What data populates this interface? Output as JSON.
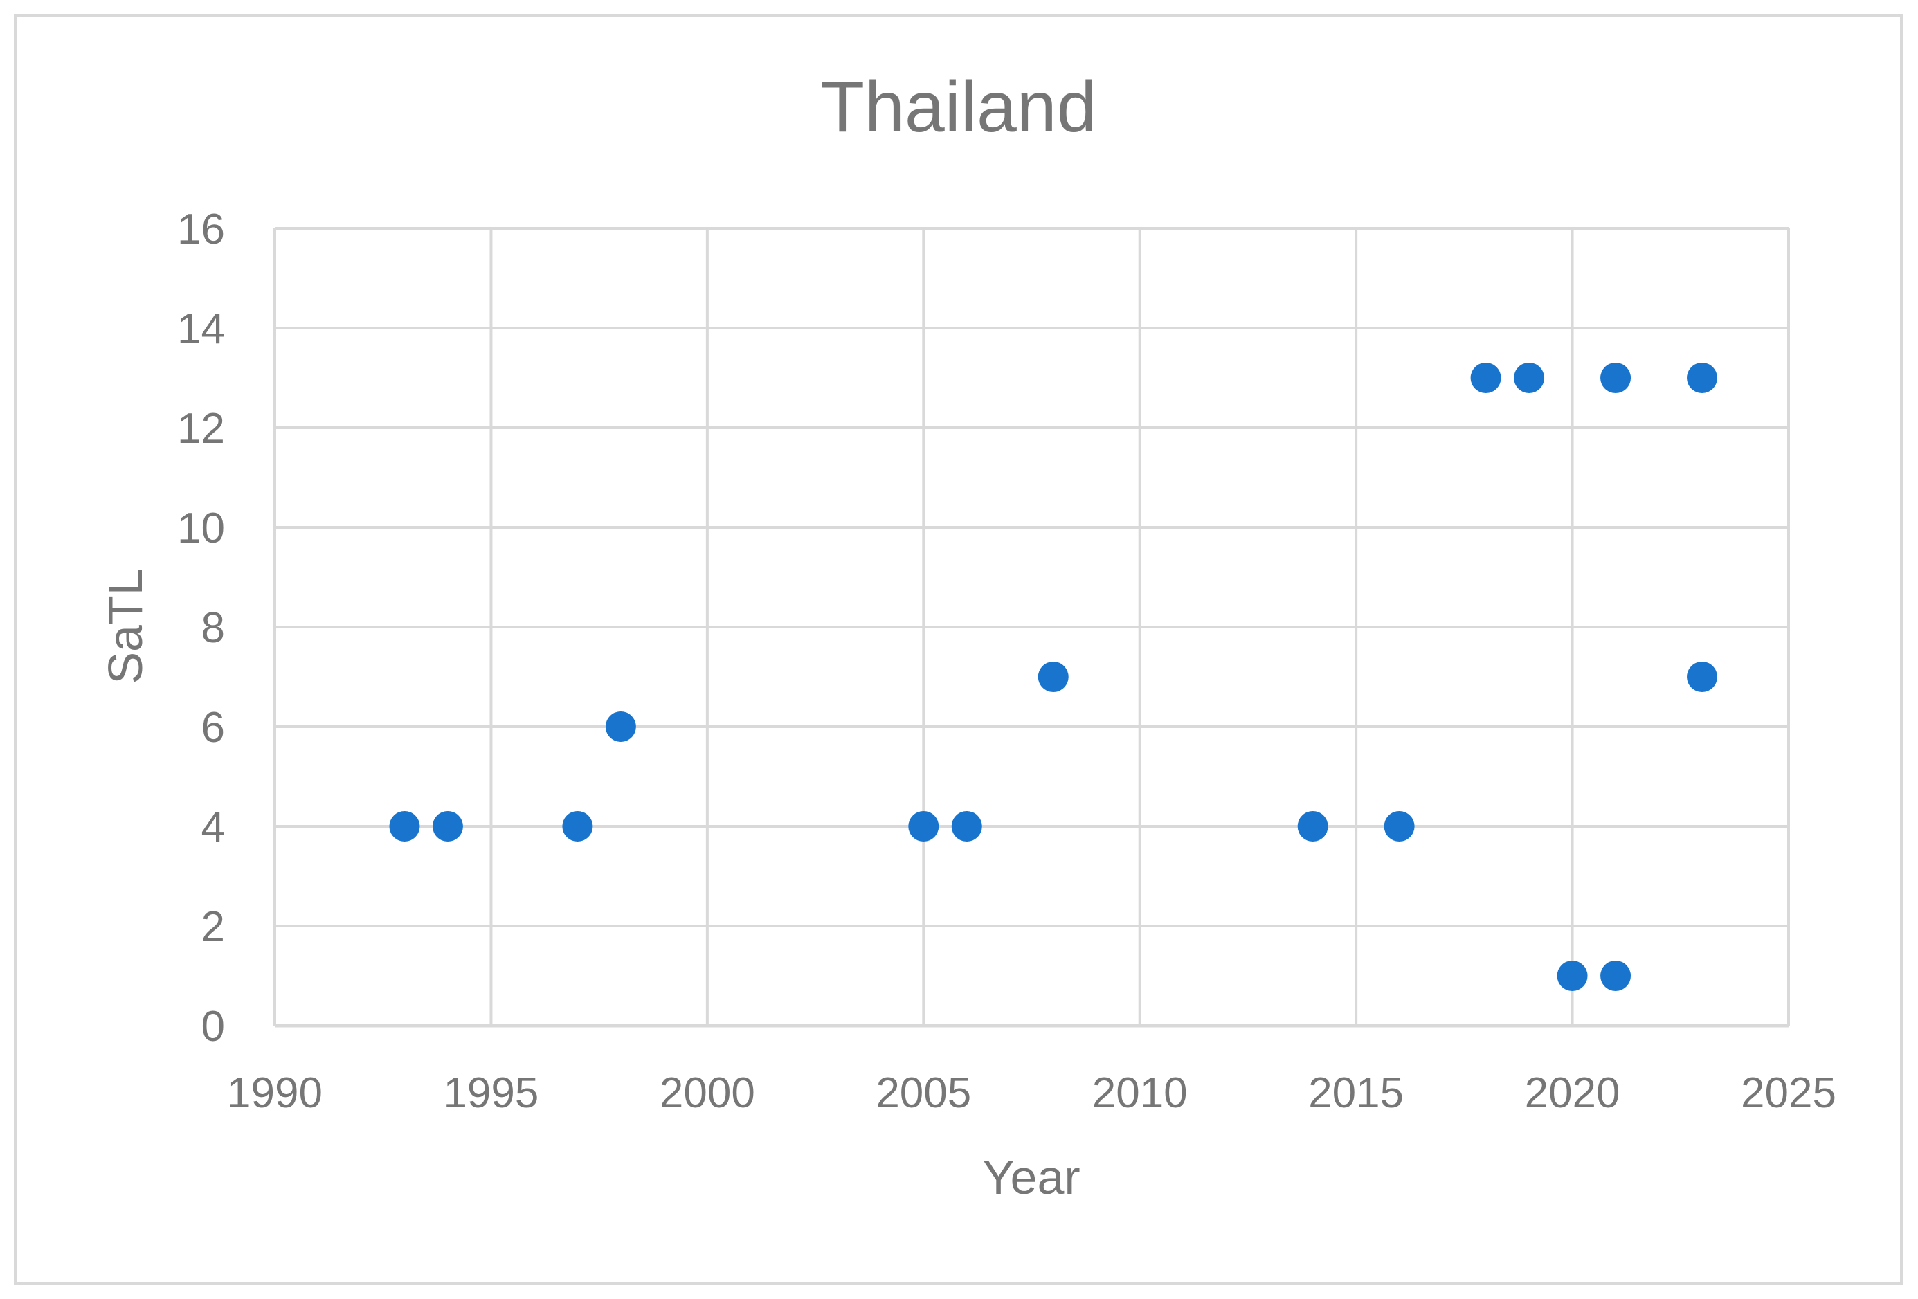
{
  "chart_data": {
    "type": "scatter",
    "title": "Thailand",
    "xlabel": "Year",
    "ylabel": "SaTL",
    "xlim": [
      1990,
      2025
    ],
    "ylim": [
      0,
      16
    ],
    "x_ticks": [
      1990,
      1995,
      2000,
      2005,
      2010,
      2015,
      2020,
      2025
    ],
    "y_ticks": [
      0,
      2,
      4,
      6,
      8,
      10,
      12,
      14,
      16
    ],
    "grid": true,
    "legend": "none",
    "colors": {
      "marker": "#1874CD",
      "grid": "#d9d9d9",
      "text": "#767676"
    },
    "series": [
      {
        "points": [
          [
            1993,
            4
          ],
          [
            1994,
            4
          ],
          [
            1997,
            4
          ],
          [
            1998,
            6
          ],
          [
            2005,
            4
          ],
          [
            2006,
            4
          ],
          [
            2008,
            7
          ],
          [
            2014,
            4
          ],
          [
            2016,
            4
          ],
          [
            2018,
            13
          ],
          [
            2019,
            13
          ],
          [
            2020,
            1
          ],
          [
            2021,
            1
          ],
          [
            2021,
            13
          ],
          [
            2023,
            13
          ],
          [
            2023,
            7
          ]
        ]
      }
    ]
  }
}
